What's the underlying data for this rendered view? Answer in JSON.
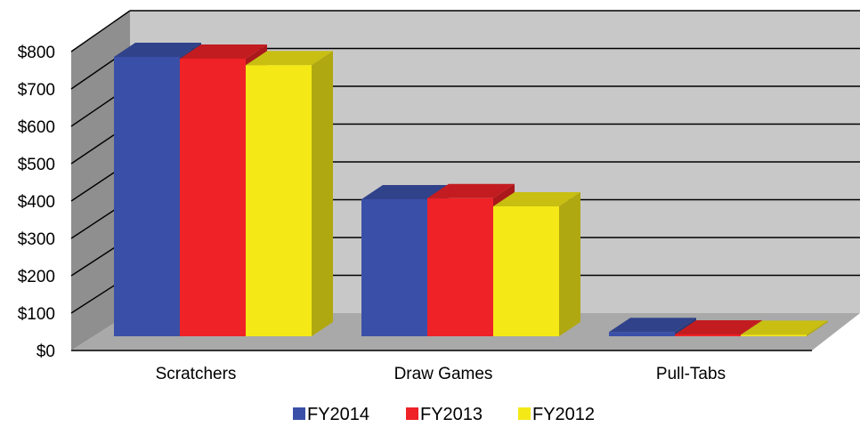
{
  "chart_data": {
    "type": "bar",
    "categories": [
      "Scratchers",
      "Draw Games",
      "Pull-Tabs"
    ],
    "series": [
      {
        "name": "FY2014",
        "color": "#3a50a8",
        "values": [
          785,
          385,
          12
        ]
      },
      {
        "name": "FY2013",
        "color": "#ee2227",
        "values": [
          780,
          388,
          5
        ]
      },
      {
        "name": "FY2012",
        "color": "#f4e916",
        "values": [
          762,
          365,
          4
        ]
      }
    ],
    "yticks": [
      "$0",
      "$100",
      "$200",
      "$300",
      "$400",
      "$500",
      "$600",
      "$700",
      "$800"
    ],
    "ylim": [
      0,
      800
    ],
    "grid": true,
    "legend_position": "bottom",
    "title": "",
    "xlabel": "",
    "ylabel": ""
  }
}
